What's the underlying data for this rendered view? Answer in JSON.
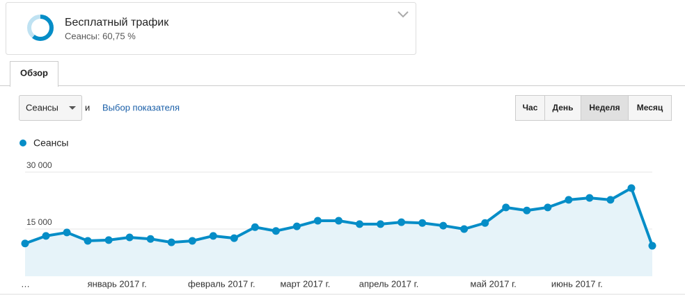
{
  "segment": {
    "title": "Бесплатный трафик",
    "subtitle": "Сеансы: 60,75 %"
  },
  "tabs": [
    "Обзор"
  ],
  "controls": {
    "metric": "Сеансы",
    "conjunction": "и",
    "link": "Выбор показателя",
    "periods": [
      "Час",
      "День",
      "Неделя",
      "Месяц"
    ],
    "active_period": "Неделя"
  },
  "chart_data": {
    "type": "area",
    "categories": [
      "…",
      null,
      null,
      null,
      "январь 2017 г.",
      null,
      null,
      null,
      null,
      "февраль 2017 г.",
      null,
      null,
      null,
      "март 2017 г.",
      null,
      null,
      null,
      "апрель 2017 г.",
      null,
      null,
      null,
      null,
      "май 2017 г.",
      null,
      null,
      null,
      "июнь 2017 г.",
      null,
      null,
      null,
      null
    ],
    "series": [
      {
        "name": "Сеансы",
        "color": "#058dc7",
        "values": [
          11200,
          13200,
          14100,
          11900,
          12100,
          12800,
          12400,
          11500,
          11900,
          13200,
          12600,
          15500,
          14500,
          15700,
          17200,
          17200,
          16300,
          16300,
          16800,
          16600,
          15900,
          15000,
          16600,
          20700,
          19900,
          20700,
          22700,
          23200,
          22700,
          25800,
          10600
        ]
      }
    ],
    "ylim": [
      0,
      30000
    ],
    "yticks": [
      {
        "value": 15000,
        "label": "15 000"
      },
      {
        "value": 30000,
        "label": "30 000"
      }
    ],
    "grid": true
  }
}
